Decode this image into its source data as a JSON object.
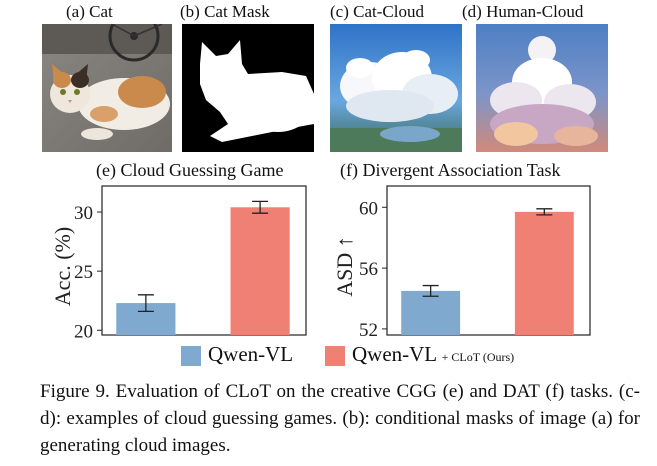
{
  "panels": [
    {
      "label": "(a) Cat",
      "icon": "cat-photo"
    },
    {
      "label": "(b) Cat Mask",
      "icon": "cat-mask"
    },
    {
      "label": "(c) Cat-Cloud",
      "icon": "cat-cloud-image"
    },
    {
      "label": "(d) Human-Cloud",
      "icon": "human-cloud-image"
    }
  ],
  "colors": {
    "qwen": "#7fa9cf",
    "clot": "#f08073"
  },
  "chart_data": [
    {
      "type": "bar",
      "title": "(e) Cloud Guessing Game",
      "ylabel": "Acc. (%)",
      "categories": [
        "Qwen-VL",
        "Qwen-VL + CLoT (Ours)"
      ],
      "values": [
        22.3,
        30.4
      ],
      "error": [
        0.7,
        0.5
      ],
      "ylim": [
        19.6,
        32.2
      ],
      "yticks": [
        20,
        25,
        30
      ],
      "colors": [
        "#7fa9cf",
        "#f08073"
      ]
    },
    {
      "type": "bar",
      "title": "(f) Divergent Association Task",
      "ylabel": "ASD ↑",
      "categories": [
        "Qwen-VL",
        "Qwen-VL + CLoT (Ours)"
      ],
      "values": [
        54.5,
        59.7
      ],
      "error": [
        0.35,
        0.2
      ],
      "ylim": [
        51.6,
        61.4
      ],
      "yticks": [
        52,
        56,
        60
      ],
      "colors": [
        "#7fa9cf",
        "#f08073"
      ]
    }
  ],
  "legend": {
    "items": [
      {
        "label": "Qwen-VL",
        "suffix": "",
        "color": "#7fa9cf"
      },
      {
        "label": "Qwen-VL",
        "suffix": "+ CLoT (Ours)",
        "color": "#f08073"
      }
    ]
  },
  "caption": "Figure 9. Evaluation of CLoT on the creative CGG (e) and DAT (f) tasks. (c-d): examples of cloud guessing games. (b): conditional masks of image (a) for generating cloud images."
}
